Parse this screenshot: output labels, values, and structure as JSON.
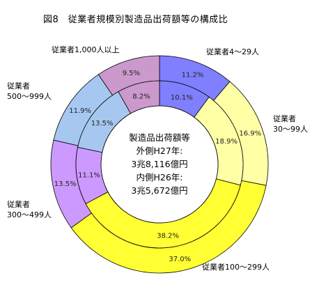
{
  "chart_data": {
    "type": "donut",
    "title": "図8　従業者規模別製造品出荷額等の構成比",
    "categories": [
      "従業者4〜29人",
      "従業者30〜99人",
      "従業者100〜299人",
      "従業者300〜499人",
      "従業者500〜999人",
      "従業者1,000人以上"
    ],
    "series": [
      {
        "name": "外側H27年",
        "values": [
          11.2,
          16.9,
          37.0,
          13.5,
          11.9,
          9.5
        ]
      },
      {
        "name": "内側H26年",
        "values": [
          10.1,
          18.9,
          38.2,
          11.1,
          13.5,
          8.2
        ]
      }
    ],
    "colors": [
      "#7f7fff",
      "#ffffa6",
      "#ffff33",
      "#cc99ff",
      "#a6c8f0",
      "#cc99cc"
    ],
    "center_text": [
      "製造品出荷額等",
      "外側H27年:",
      "3兆8,116億円",
      "内側H26年:",
      "3兆5,672億円"
    ],
    "category_labels": [
      {
        "lines": [
          "従業者4〜29人"
        ]
      },
      {
        "lines": [
          "従業者",
          "30〜99人"
        ]
      },
      {
        "lines": [
          "従業者100〜299人"
        ]
      },
      {
        "lines": [
          "従業者",
          "300〜499人"
        ]
      },
      {
        "lines": [
          "従業者",
          "500〜999人"
        ]
      },
      {
        "lines": [
          "従業者1,000人以上"
        ]
      }
    ]
  }
}
